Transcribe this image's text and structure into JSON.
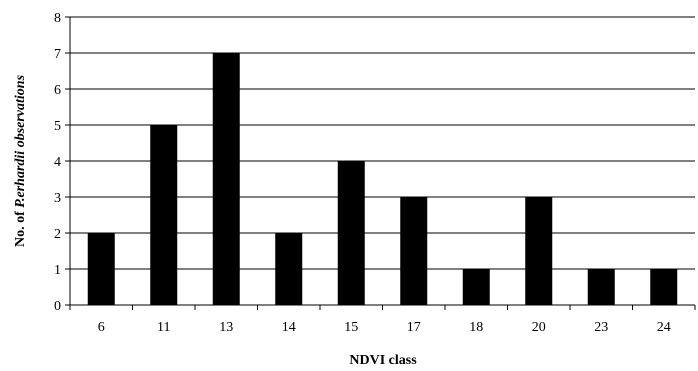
{
  "chart_data": {
    "type": "bar",
    "categories": [
      "6",
      "11",
      "13",
      "14",
      "15",
      "17",
      "18",
      "20",
      "23",
      "24"
    ],
    "values": [
      2,
      5,
      7,
      2,
      4,
      3,
      1,
      3,
      1,
      1
    ],
    "title": "",
    "xlabel": "NDVI class",
    "ylabel": "No. of P.erhardii observations",
    "ylabel_parts": {
      "prefix": "No. of ",
      "italic": "P.erhardii observations"
    },
    "ylim": [
      0,
      8
    ],
    "yticks": [
      0,
      1,
      2,
      3,
      4,
      5,
      6,
      7,
      8
    ],
    "grid": "horizontal",
    "legend": "none",
    "colors": {
      "bar": "#000000",
      "grid": "#000000",
      "axis": "#000000",
      "background": "#ffffff"
    }
  }
}
